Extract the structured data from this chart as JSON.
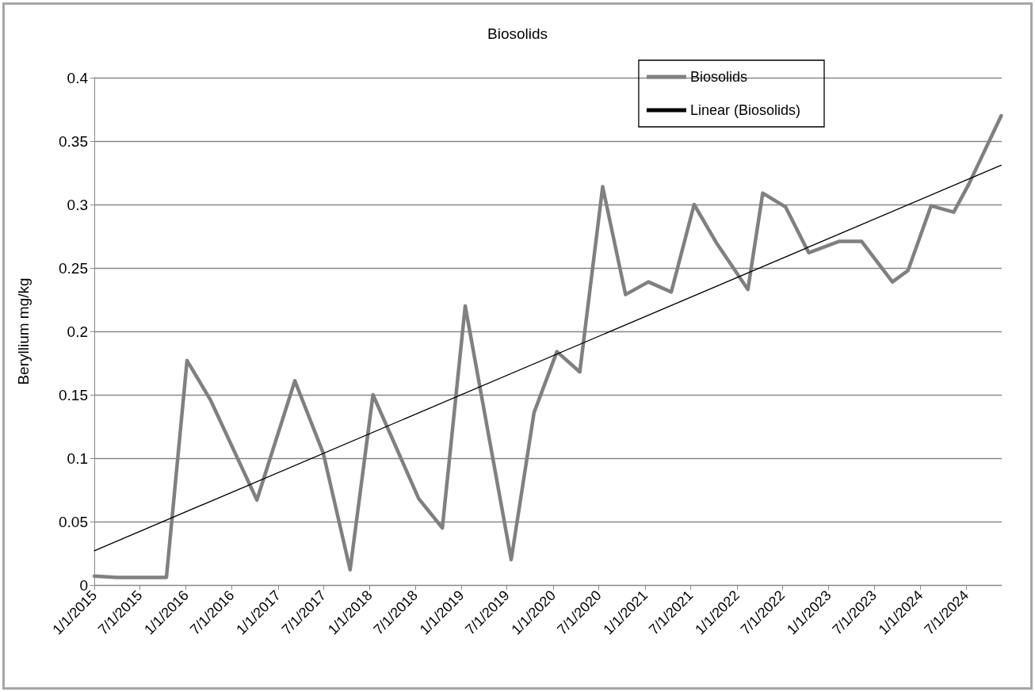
{
  "chart_data": {
    "type": "line",
    "title": "Biosolids",
    "ylabel": "Beryllium mg/kg",
    "series": [
      {
        "name": "Biosolids",
        "color": "#808080",
        "x": [
          "2015-01-01",
          "2015-04-01",
          "2015-07-01",
          "2015-10-15",
          "2016-01-05",
          "2016-04-07",
          "2016-10-09",
          "2017-03-09",
          "2017-06-30",
          "2017-10-15",
          "2018-01-14",
          "2018-07-15",
          "2018-10-17",
          "2019-01-16",
          "2019-07-18",
          "2019-10-17",
          "2020-01-16",
          "2020-04-16",
          "2020-07-16",
          "2020-10-15",
          "2021-01-14",
          "2021-04-15",
          "2021-07-15",
          "2021-10-14",
          "2022-02-14",
          "2022-04-14",
          "2022-07-14",
          "2022-10-14",
          "2023-02-13",
          "2023-05-12",
          "2023-09-12",
          "2023-11-13",
          "2024-02-13",
          "2024-05-13",
          "2024-07-12",
          "2024-11-18"
        ],
        "values": [
          0.007,
          0.006,
          0.006,
          0.006,
          0.177,
          0.146,
          0.067,
          0.161,
          0.104,
          0.012,
          0.15,
          0.068,
          0.045,
          0.22,
          0.02,
          0.136,
          0.184,
          0.168,
          0.314,
          0.229,
          0.239,
          0.231,
          0.3,
          0.269,
          0.233,
          0.309,
          0.298,
          0.262,
          0.271,
          0.271,
          0.239,
          0.248,
          0.299,
          0.294,
          0.316,
          0.37
        ]
      },
      {
        "name": "Linear (Biosolids)",
        "color": "#000000",
        "x": [
          "2015-01-01",
          "2024-11-18"
        ],
        "values": [
          0.027,
          0.331
        ]
      }
    ],
    "xlim": [
      "2015-01-01",
      "2024-11-20"
    ],
    "xticks": [
      {
        "value": "2015-01-01",
        "label": "1/1/2015"
      },
      {
        "value": "2015-07-01",
        "label": "7/1/2015"
      },
      {
        "value": "2016-01-01",
        "label": "1/1/2016"
      },
      {
        "value": "2016-07-01",
        "label": "7/1/2016"
      },
      {
        "value": "2017-01-01",
        "label": "1/1/2017"
      },
      {
        "value": "2017-07-01",
        "label": "7/1/2017"
      },
      {
        "value": "2018-01-01",
        "label": "1/1/2018"
      },
      {
        "value": "2018-07-01",
        "label": "7/1/2018"
      },
      {
        "value": "2019-01-01",
        "label": "1/1/2019"
      },
      {
        "value": "2019-07-01",
        "label": "7/1/2019"
      },
      {
        "value": "2020-01-01",
        "label": "1/1/2020"
      },
      {
        "value": "2020-07-01",
        "label": "7/1/2020"
      },
      {
        "value": "2021-01-01",
        "label": "1/1/2021"
      },
      {
        "value": "2021-07-01",
        "label": "7/1/2021"
      },
      {
        "value": "2022-01-01",
        "label": "1/1/2022"
      },
      {
        "value": "2022-07-01",
        "label": "7/1/2022"
      },
      {
        "value": "2023-01-01",
        "label": "1/1/2023"
      },
      {
        "value": "2023-07-01",
        "label": "7/1/2023"
      },
      {
        "value": "2024-01-01",
        "label": "1/1/2024"
      },
      {
        "value": "2024-07-01",
        "label": "7/1/2024"
      }
    ],
    "ylim": [
      0,
      0.4
    ],
    "yticks": [
      0,
      0.05,
      0.1,
      0.15,
      0.2,
      0.25,
      0.3,
      0.35,
      0.4
    ],
    "grid": "y",
    "legend": "top right",
    "marker": "none",
    "line_style": "solid"
  }
}
